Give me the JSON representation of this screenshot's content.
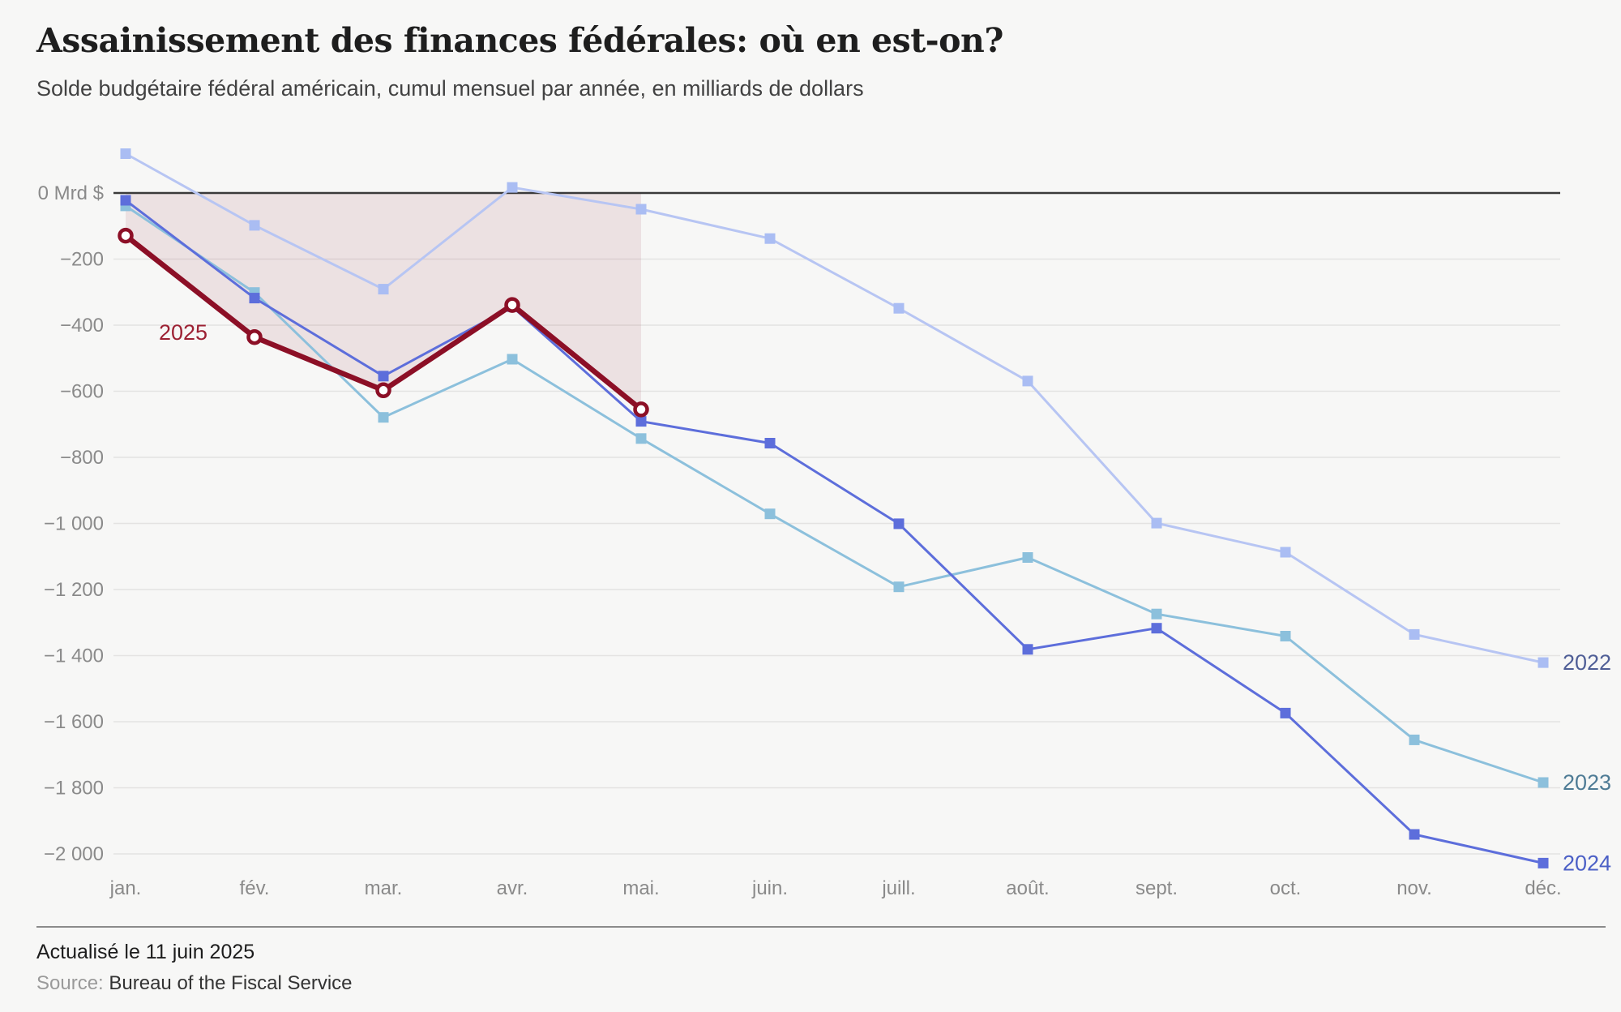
{
  "header": {
    "title": "Assainissement des finances fédérales: où en est-on?",
    "subtitle": "Solde budgétaire fédéral américain, cumul mensuel par année, en milliards de dollars"
  },
  "footer": {
    "updated": "Actualisé le 11 juin 2025",
    "source_label": "Source:",
    "source_value": "Bureau of the Fiscal Service"
  },
  "colors": {
    "background": "#f7f7f6",
    "gridline": "#e4e3e2",
    "zero_line": "#3a3a3a",
    "axis_text": "#8a8a8a",
    "area_fill": "rgba(142,17,39,0.095)"
  },
  "chart_data": {
    "type": "line",
    "unit": "Mrd $",
    "categories": [
      "jan.",
      "fév.",
      "mar.",
      "avr.",
      "mai.",
      "juin.",
      "juill.",
      "août.",
      "sept.",
      "oct.",
      "nov.",
      "déc."
    ],
    "series": [
      {
        "name": "2022",
        "marker": "square",
        "line_color": "#b7c5f3",
        "marker_color": "#aabdf3",
        "label_color": "#4f5e96",
        "values": [
          119,
          -98,
          -291,
          17,
          -49,
          -138,
          -349,
          -569,
          -999,
          -1087,
          -1336,
          -1421
        ]
      },
      {
        "name": "2023",
        "marker": "square",
        "line_color": "#8cc0dc",
        "marker_color": "#8cc0dc",
        "label_color": "#4e7b95",
        "values": [
          -39,
          -301,
          -679,
          -503,
          -743,
          -971,
          -1192,
          -1103,
          -1274,
          -1341,
          -1655,
          -1784
        ]
      },
      {
        "name": "2024",
        "marker": "square",
        "line_color": "#5d6edb",
        "marker_color": "#5d6edb",
        "label_color": "#4c60c6",
        "values": [
          -22,
          -318,
          -554,
          -344,
          -691,
          -757,
          -1001,
          -1381,
          -1317,
          -1574,
          -1941,
          -2028
        ]
      },
      {
        "name": "2025",
        "marker": "open-circle",
        "line_color": "#8c0f26",
        "marker_color": "#8c0f26",
        "label_color": "#9c2133",
        "highlight": true,
        "area_to_zero": true,
        "values": [
          -129,
          -436,
          -597,
          -339,
          -655,
          null,
          null,
          null,
          null,
          null,
          null,
          null
        ]
      }
    ],
    "yticks": [
      {
        "value": 0,
        "label": "0 Mrd $"
      },
      {
        "value": -200,
        "label": "−200"
      },
      {
        "value": -400,
        "label": "−400"
      },
      {
        "value": -600,
        "label": "−600"
      },
      {
        "value": -800,
        "label": "−800"
      },
      {
        "value": -1000,
        "label": "−1 000"
      },
      {
        "value": -1200,
        "label": "−1 200"
      },
      {
        "value": -1400,
        "label": "−1 400"
      },
      {
        "value": -1600,
        "label": "−1 600"
      },
      {
        "value": -1800,
        "label": "−1 800"
      },
      {
        "value": -2000,
        "label": "−2 000"
      }
    ],
    "ylim": [
      -2100,
      180
    ],
    "grid": true,
    "legend_position": "end-of-line"
  }
}
